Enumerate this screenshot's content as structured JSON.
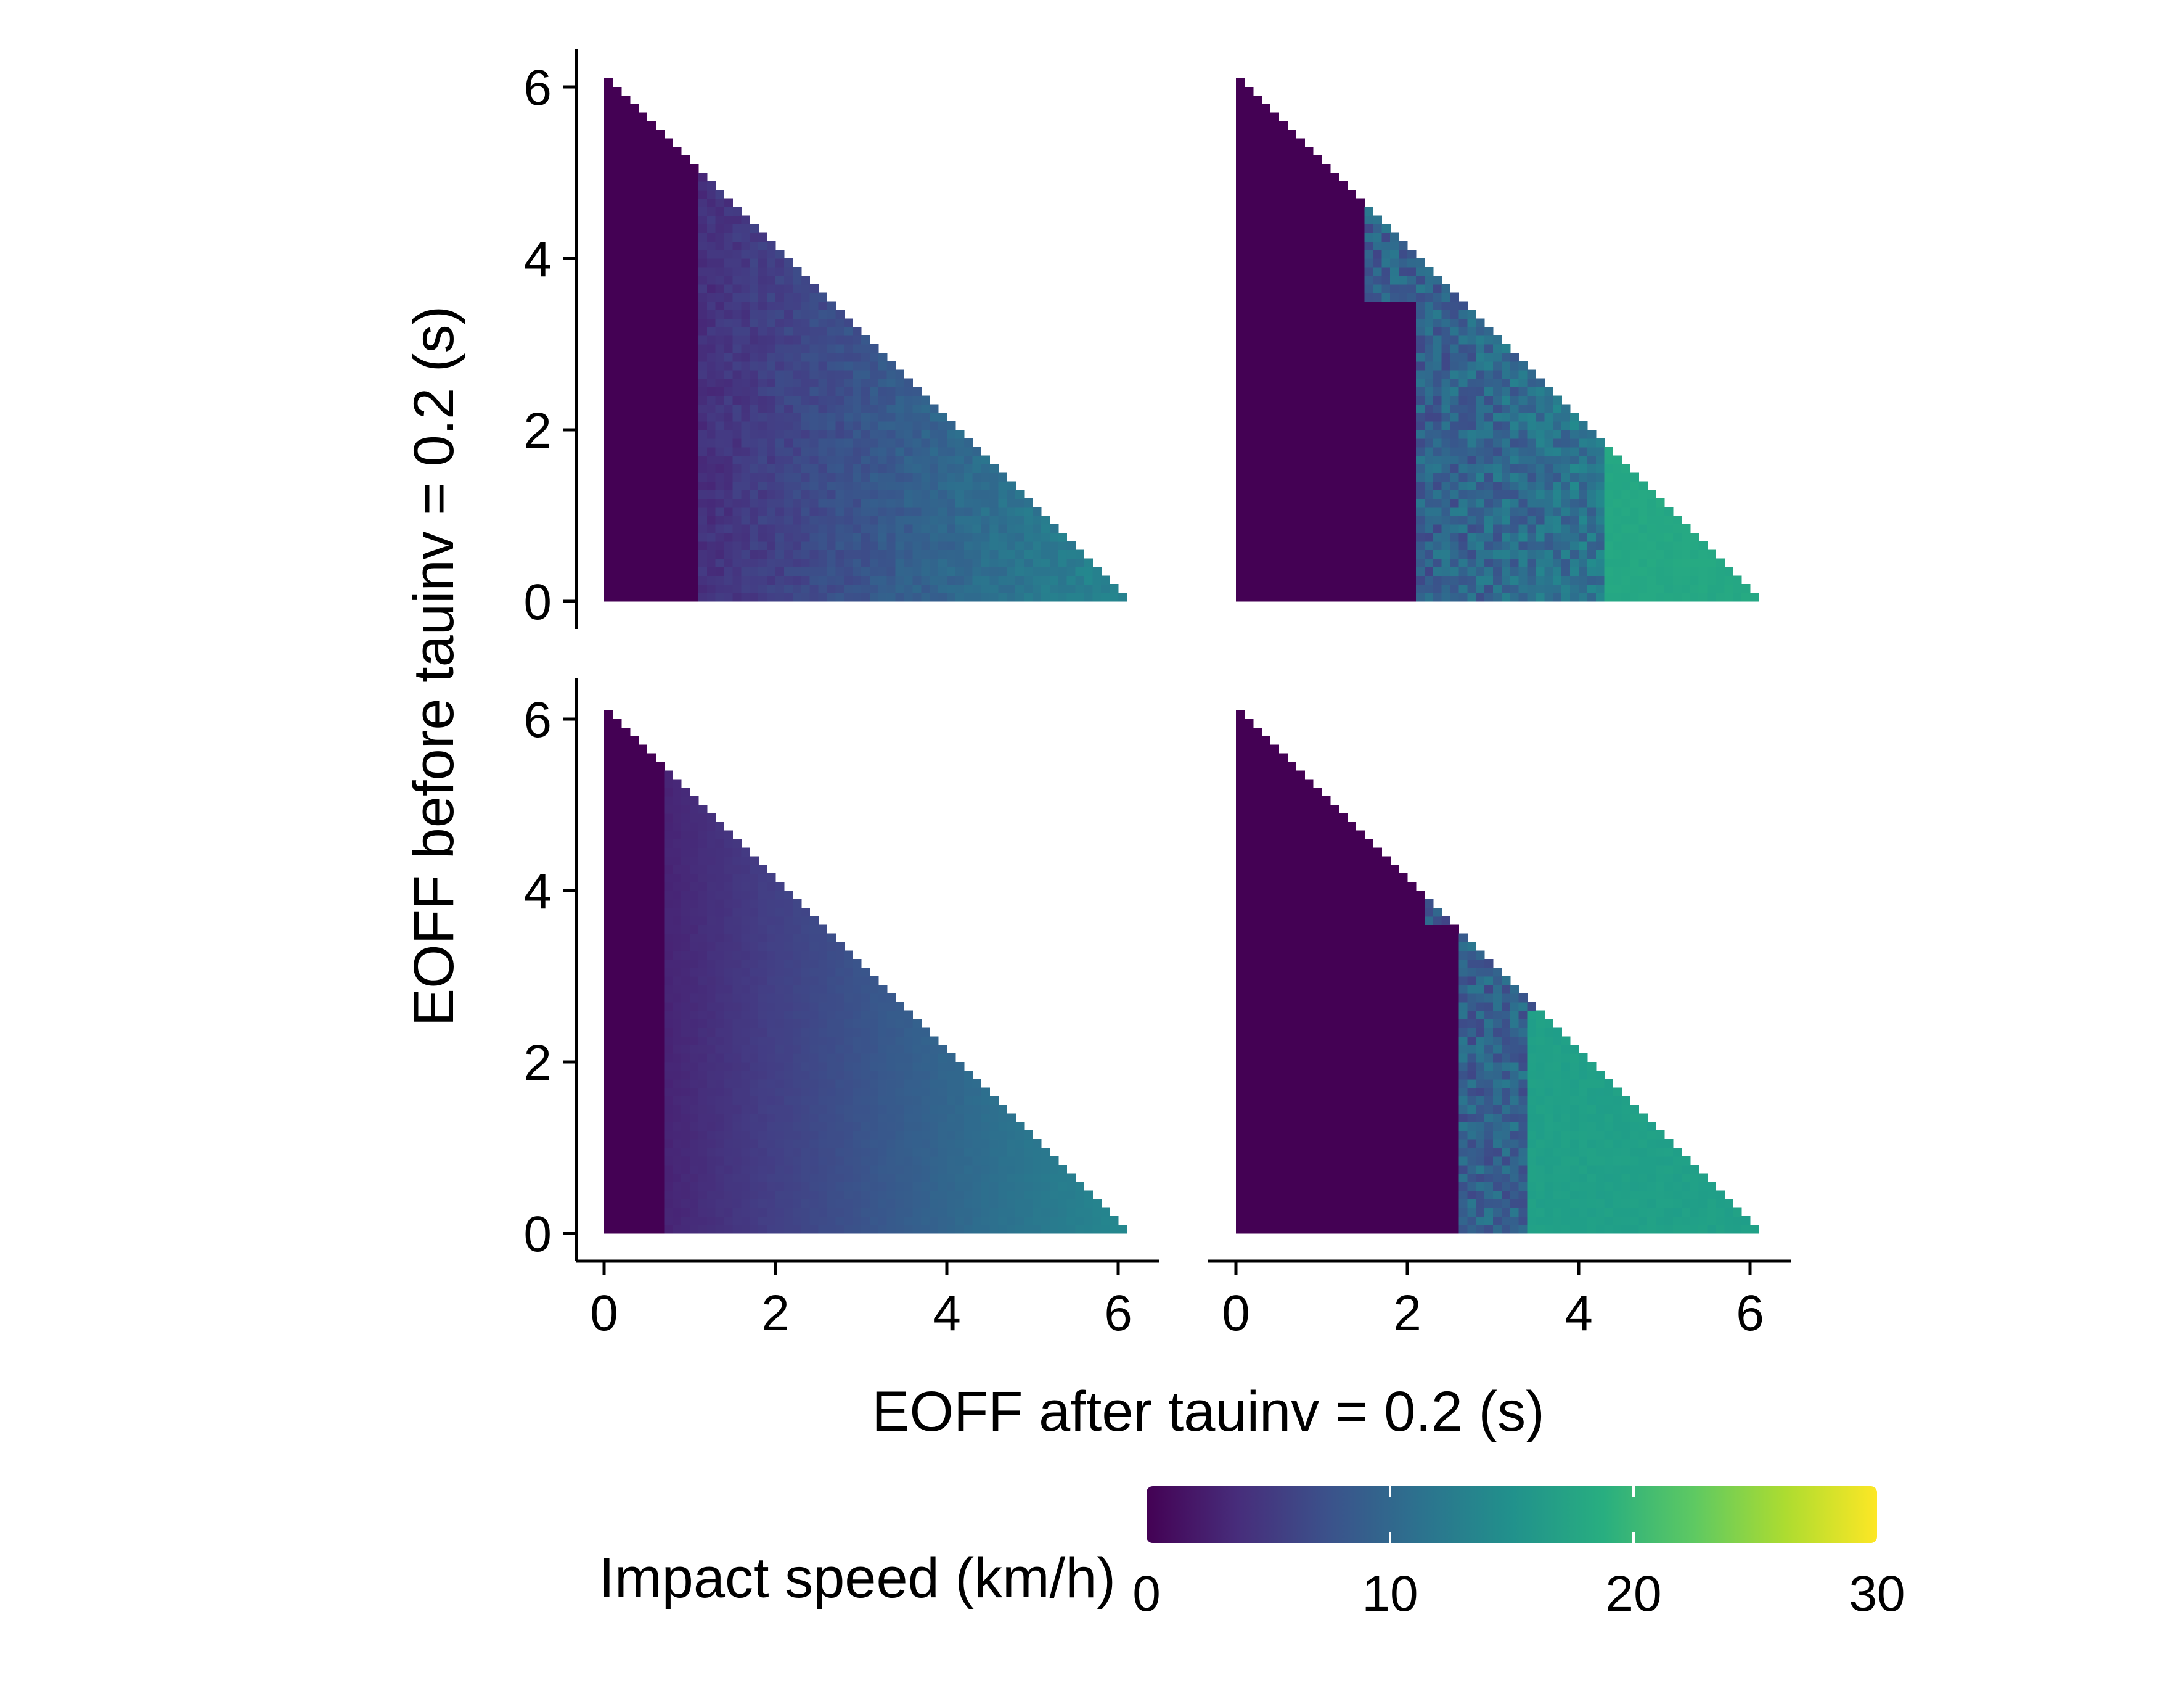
{
  "chart_data": {
    "type": "heatmap",
    "xlabel": "EOFF after tauinv = 0.2 (s)",
    "ylabel": "EOFF before tauinv = 0.2 (s)",
    "x_range": [
      0,
      6.1
    ],
    "y_range": [
      0,
      6.1
    ],
    "x_ticks": [
      0,
      2,
      4,
      6
    ],
    "y_ticks": [
      0,
      2,
      4,
      6
    ],
    "grid": false,
    "colorbar": {
      "title": "Impact speed (km/h)",
      "range": [
        0,
        30
      ],
      "ticks": [
        0,
        10,
        20,
        30
      ],
      "palette": "viridis",
      "position": "bottom"
    },
    "cell_size": 0.1,
    "domain": "lower-left triangle where x + y <= 6.1",
    "panels": [
      {
        "position": "top-left",
        "zero_region_x_max": 1.1,
        "gradient": {
          "x_start": 1.1,
          "x_end": 6.1,
          "v_start": 4,
          "v_end": 14
        },
        "noise": 1.0,
        "steps": []
      },
      {
        "position": "top-right",
        "zero_region_x_max": 2.1,
        "zero_region_steps": [
          {
            "y_min": 3.5,
            "x_max": 1.5
          }
        ],
        "gradient": {
          "x_start": 2.1,
          "x_end": 6.1,
          "v_start": 9,
          "v_end": 14
        },
        "noise": 3.0,
        "steps": [
          {
            "x_min": 4.3,
            "y_max": 1.8,
            "value": 18
          }
        ]
      },
      {
        "position": "bottom-left",
        "zero_region_x_max": 0.7,
        "gradient": {
          "x_start": 0.7,
          "x_end": 6.1,
          "v_start": 3,
          "v_end": 14
        },
        "noise": 0.2,
        "steps": []
      },
      {
        "position": "bottom-right",
        "zero_region_x_max": 2.6,
        "zero_region_steps": [
          {
            "y_min": 3.6,
            "x_max": 2.2
          }
        ],
        "gradient": {
          "x_start": 2.6,
          "x_end": 6.1,
          "v_start": 9,
          "v_end": 12
        },
        "noise": 3.0,
        "steps": [
          {
            "x_min": 3.4,
            "y_max": 2.6,
            "value": 17
          }
        ]
      }
    ]
  }
}
